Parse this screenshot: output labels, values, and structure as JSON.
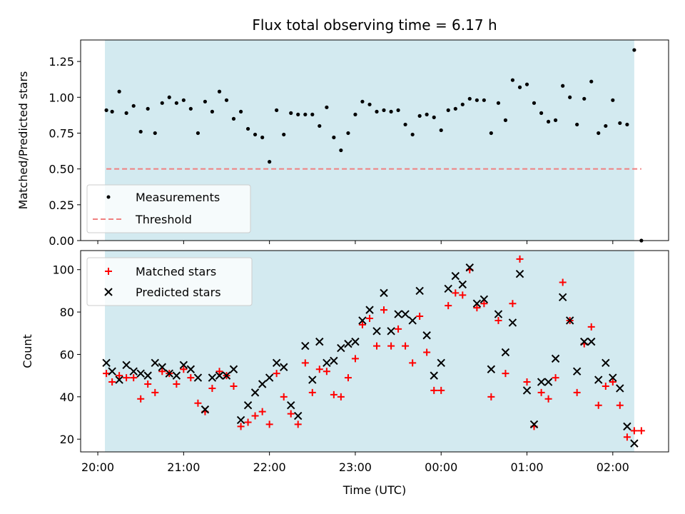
{
  "chart_data": [
    {
      "type": "scatter",
      "title": "Flux total observing time = 6.17 h",
      "ylabel": "Matched/Predicted stars",
      "xlabel": "",
      "x_unit": "hours since 20:00 UTC (axis labels show clock time)",
      "ylim": [
        0,
        1.4
      ],
      "yticks": [
        0.0,
        0.25,
        0.5,
        0.75,
        1.0,
        1.25
      ],
      "ytick_labels": [
        "0.00",
        "0.25",
        "0.50",
        "0.75",
        "1.00",
        "1.25"
      ],
      "observing_window": [
        0.083,
        6.25
      ],
      "legend_position": "lower-left",
      "series": [
        {
          "name": "Measurements",
          "marker": "dot",
          "color": "#000000",
          "x": [
            0.1,
            0.167,
            0.25,
            0.333,
            0.417,
            0.5,
            0.583,
            0.667,
            0.75,
            0.833,
            0.917,
            1.0,
            1.083,
            1.167,
            1.25,
            1.333,
            1.417,
            1.5,
            1.583,
            1.667,
            1.75,
            1.833,
            1.917,
            2.0,
            2.083,
            2.167,
            2.25,
            2.333,
            2.417,
            2.5,
            2.583,
            2.667,
            2.75,
            2.833,
            2.917,
            3.0,
            3.083,
            3.167,
            3.25,
            3.333,
            3.417,
            3.5,
            3.583,
            3.667,
            3.75,
            3.833,
            3.917,
            4.0,
            4.083,
            4.167,
            4.25,
            4.333,
            4.417,
            4.5,
            4.583,
            4.667,
            4.75,
            4.833,
            4.917,
            5.0,
            5.083,
            5.167,
            5.25,
            5.333,
            5.417,
            5.5,
            5.583,
            5.667,
            5.75,
            5.833,
            5.917,
            6.0,
            6.083,
            6.167,
            6.25,
            6.333
          ],
          "y": [
            0.91,
            0.9,
            1.04,
            0.89,
            0.94,
            0.76,
            0.92,
            0.75,
            0.96,
            1.0,
            0.96,
            0.98,
            0.92,
            0.75,
            0.97,
            0.9,
            1.04,
            0.98,
            0.85,
            0.9,
            0.78,
            0.74,
            0.72,
            0.55,
            0.91,
            0.74,
            0.89,
            0.88,
            0.88,
            0.88,
            0.8,
            0.93,
            0.72,
            0.63,
            0.75,
            0.88,
            0.97,
            0.95,
            0.9,
            0.91,
            0.9,
            0.91,
            0.81,
            0.74,
            0.87,
            0.88,
            0.86,
            0.77,
            0.91,
            0.92,
            0.95,
            0.99,
            0.98,
            0.98,
            0.75,
            0.96,
            0.84,
            1.12,
            1.07,
            1.09,
            0.96,
            0.89,
            0.83,
            0.84,
            1.08,
            1.0,
            0.81,
            0.99,
            1.11,
            0.75,
            0.8,
            0.98,
            0.82,
            0.81,
            1.33,
            0.0
          ]
        },
        {
          "name": "Threshold",
          "marker": "dashed-line",
          "color": "#f08080",
          "x": [
            0.1,
            6.333
          ],
          "y": [
            0.5,
            0.5
          ]
        }
      ]
    },
    {
      "type": "scatter",
      "title": "",
      "ylabel": "Count",
      "xlabel": "Time (UTC)",
      "x_unit": "hours since 20:00 UTC (axis labels show clock time)",
      "ylim": [
        14,
        109
      ],
      "yticks": [
        20,
        40,
        60,
        80,
        100
      ],
      "ytick_labels": [
        "20",
        "40",
        "60",
        "80",
        "100"
      ],
      "xlim": [
        -0.2,
        6.65
      ],
      "xticks": [
        0,
        1,
        2,
        3,
        4,
        5,
        6
      ],
      "xtick_labels": [
        "20:00",
        "21:00",
        "22:00",
        "23:00",
        "00:00",
        "01:00",
        "02:00"
      ],
      "observing_window": [
        0.083,
        6.25
      ],
      "legend_position": "upper-left",
      "series": [
        {
          "name": "Matched stars",
          "marker": "plus",
          "color": "#ff0000",
          "x": [
            0.1,
            0.167,
            0.25,
            0.333,
            0.417,
            0.5,
            0.583,
            0.667,
            0.75,
            0.833,
            0.917,
            1.0,
            1.083,
            1.167,
            1.25,
            1.333,
            1.417,
            1.5,
            1.583,
            1.667,
            1.75,
            1.833,
            1.917,
            2.0,
            2.083,
            2.167,
            2.25,
            2.333,
            2.417,
            2.5,
            2.583,
            2.667,
            2.75,
            2.833,
            2.917,
            3.0,
            3.083,
            3.167,
            3.25,
            3.333,
            3.417,
            3.5,
            3.583,
            3.667,
            3.75,
            3.833,
            3.917,
            4.0,
            4.083,
            4.167,
            4.25,
            4.333,
            4.417,
            4.5,
            4.583,
            4.667,
            4.75,
            4.833,
            4.917,
            5.0,
            5.083,
            5.167,
            5.25,
            5.333,
            5.417,
            5.5,
            5.583,
            5.667,
            5.75,
            5.833,
            5.917,
            6.0,
            6.083,
            6.167,
            6.25,
            6.333
          ],
          "y": [
            51,
            47,
            50,
            49,
            49,
            39,
            46,
            42,
            52,
            51,
            46,
            53,
            49,
            37,
            33,
            44,
            52,
            50,
            45,
            26,
            28,
            31,
            33,
            27,
            51,
            40,
            32,
            27,
            56,
            42,
            53,
            52,
            41,
            40,
            49,
            58,
            74,
            77,
            64,
            81,
            64,
            72,
            64,
            56,
            78,
            61,
            43,
            43,
            83,
            89,
            88,
            100,
            82,
            84,
            40,
            76,
            51,
            84,
            105,
            47,
            26,
            42,
            39,
            49,
            94,
            76,
            42,
            65,
            73,
            36,
            45,
            47,
            36,
            21,
            24,
            24
          ]
        },
        {
          "name": "Predicted stars",
          "marker": "x",
          "color": "#000000",
          "x": [
            0.1,
            0.167,
            0.25,
            0.333,
            0.417,
            0.5,
            0.583,
            0.667,
            0.75,
            0.833,
            0.917,
            1.0,
            1.083,
            1.167,
            1.25,
            1.333,
            1.417,
            1.5,
            1.583,
            1.667,
            1.75,
            1.833,
            1.917,
            2.0,
            2.083,
            2.167,
            2.25,
            2.333,
            2.417,
            2.5,
            2.583,
            2.667,
            2.75,
            2.833,
            2.917,
            3.0,
            3.083,
            3.167,
            3.25,
            3.333,
            3.417,
            3.5,
            3.583,
            3.667,
            3.75,
            3.833,
            3.917,
            4.0,
            4.083,
            4.167,
            4.25,
            4.333,
            4.417,
            4.5,
            4.583,
            4.667,
            4.75,
            4.833,
            4.917,
            5.0,
            5.083,
            5.167,
            5.25,
            5.333,
            5.417,
            5.5,
            5.583,
            5.667,
            5.75,
            5.833,
            5.917,
            6.0,
            6.083,
            6.167,
            6.25
          ],
          "y": [
            56,
            52,
            48,
            55,
            52,
            51,
            50,
            56,
            54,
            51,
            50,
            55,
            53,
            49,
            34,
            49,
            50,
            50,
            53,
            29,
            36,
            42,
            46,
            49,
            56,
            54,
            36,
            31,
            64,
            48,
            66,
            56,
            57,
            63,
            65,
            66,
            76,
            81,
            71,
            89,
            71,
            79,
            79,
            76,
            90,
            69,
            50,
            56,
            91,
            97,
            93,
            101,
            84,
            86,
            53,
            79,
            61,
            75,
            98,
            43,
            27,
            47,
            47,
            58,
            87,
            76,
            52,
            66,
            66,
            48,
            56,
            49,
            44,
            26,
            18
          ]
        }
      ]
    }
  ]
}
